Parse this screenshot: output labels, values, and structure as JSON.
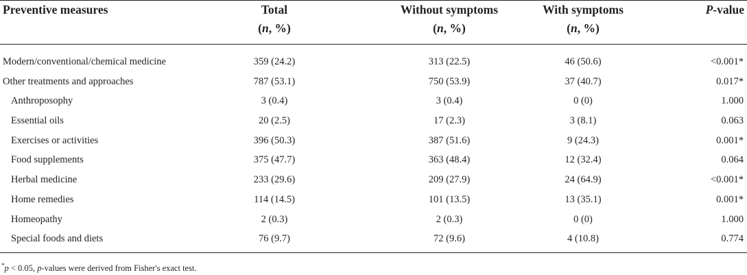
{
  "table": {
    "headers": {
      "label": "Preventive measures",
      "total_line1": "Total",
      "total_n": "n",
      "total_pct": ", %)",
      "without_line1": "Without symptoms",
      "without_n": "n",
      "without_pct": ", %)",
      "with_line1": "With symptoms",
      "with_n": "n",
      "with_pct": ", %)",
      "p_italic": "P",
      "p_rest": "-value",
      "open_paren": "("
    },
    "rows": [
      {
        "label": "Modern/conventional/chemical medicine",
        "total": "359 (24.2)",
        "without": "313 (22.5)",
        "with": "46 (50.6)",
        "p": "<0.001*"
      },
      {
        "label": "Other treatments and approaches",
        "total": "787 (53.1)",
        "without": "750 (53.9)",
        "with": "37 (40.7)",
        "p": "0.017*"
      },
      {
        "label": "Anthroposophy",
        "total": "3 (0.4)",
        "without": "3 (0.4)",
        "with": "0 (0)",
        "p": "1.000"
      },
      {
        "label": "Essential oils",
        "total": "20 (2.5)",
        "without": "17 (2.3)",
        "with": "3 (8.1)",
        "p": "0.063"
      },
      {
        "label": "Exercises or activities",
        "total": "396 (50.3)",
        "without": "387 (51.6)",
        "with": "9 (24.3)",
        "p": "0.001*"
      },
      {
        "label": "Food supplements",
        "total": "375 (47.7)",
        "without": "363 (48.4)",
        "with": "12 (32.4)",
        "p": "0.064"
      },
      {
        "label": "Herbal medicine",
        "total": "233 (29.6)",
        "without": "209 (27.9)",
        "with": "24 (64.9)",
        "p": "<0.001*"
      },
      {
        "label": "Home remedies",
        "total": "114 (14.5)",
        "without": "101 (13.5)",
        "with": "13 (35.1)",
        "p": "0.001*"
      },
      {
        "label": "Homeopathy",
        "total": "2 (0.3)",
        "without": "2 (0.3)",
        "with": "0 (0)",
        "p": "1.000"
      },
      {
        "label": "Special foods and diets",
        "total": "76 (9.7)",
        "without": "72 (9.6)",
        "with": "4 (10.8)",
        "p": "0.774"
      }
    ]
  },
  "footnote": {
    "star": "*",
    "p_symbol": "p",
    "threshold": " < 0.05, ",
    "p_symbol2": "p",
    "rest": "-values were derived from Fisher's exact test."
  }
}
